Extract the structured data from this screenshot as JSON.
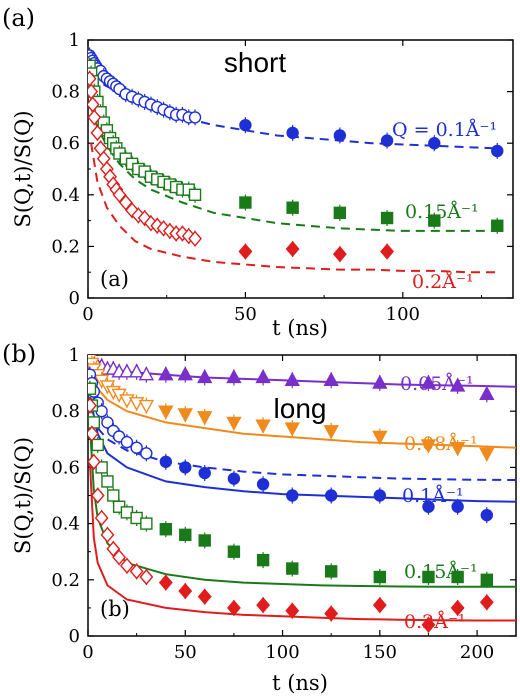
{
  "chart_data": [
    {
      "type": "scatter",
      "panel_tag": "(a)",
      "inner_tag": "(a)",
      "title": "short",
      "xlabel": "t (ns)",
      "ylabel": "S(Q,t)/S(Q)",
      "xlim": [
        0,
        135
      ],
      "ylim": [
        0,
        1
      ],
      "xticks": [
        0,
        50,
        100
      ],
      "yticks": [
        0,
        0.2,
        0.4,
        0.6,
        0.8,
        1
      ],
      "grid": false,
      "series": [
        {
          "name": "Q = 0.1Å⁻¹",
          "color": "#1f2fd6",
          "marker": "circle",
          "x": [
            0.5,
            1,
            1.5,
            2,
            2.5,
            3,
            4,
            5,
            6,
            7,
            8,
            9,
            10,
            12,
            14,
            16,
            18,
            20,
            22,
            24,
            26,
            28,
            30,
            32,
            34,
            50,
            65,
            80,
            95,
            110,
            130
          ],
          "y": [
            0.94,
            0.93,
            0.92,
            0.91,
            0.9,
            0.89,
            0.88,
            0.86,
            0.85,
            0.84,
            0.83,
            0.82,
            0.81,
            0.79,
            0.78,
            0.77,
            0.76,
            0.75,
            0.74,
            0.73,
            0.72,
            0.71,
            0.71,
            0.7,
            0.7,
            0.67,
            0.64,
            0.63,
            0.61,
            0.6,
            0.57
          ],
          "fit": {
            "style": "dashed",
            "x": [
              1,
              3,
              6,
              10,
              15,
              20,
              30,
              40,
              50,
              60,
              70,
              80,
              90,
              100,
              110,
              120,
              130
            ],
            "y": [
              0.86,
              0.84,
              0.82,
              0.8,
              0.77,
              0.74,
              0.7,
              0.67,
              0.65,
              0.63,
              0.62,
              0.61,
              0.6,
              0.595,
              0.59,
              0.585,
              0.58
            ]
          }
        },
        {
          "name": "0.15Å⁻¹",
          "color": "#1a7a1a",
          "marker": "square",
          "x": [
            0.5,
            1,
            1.5,
            2,
            3,
            4,
            5,
            6,
            7,
            8,
            9,
            10,
            12,
            14,
            16,
            18,
            20,
            22,
            24,
            26,
            28,
            30,
            32,
            34,
            50,
            65,
            80,
            95,
            110,
            130
          ],
          "y": [
            0.9,
            0.87,
            0.84,
            0.8,
            0.76,
            0.72,
            0.68,
            0.65,
            0.62,
            0.6,
            0.58,
            0.56,
            0.54,
            0.52,
            0.5,
            0.49,
            0.47,
            0.46,
            0.45,
            0.44,
            0.43,
            0.42,
            0.42,
            0.4,
            0.37,
            0.35,
            0.33,
            0.31,
            0.3,
            0.28
          ],
          "fit": {
            "style": "dashed",
            "x": [
              1,
              3,
              6,
              10,
              15,
              20,
              30,
              40,
              50,
              60,
              70,
              80,
              90,
              100,
              110,
              120,
              130
            ],
            "y": [
              0.74,
              0.66,
              0.59,
              0.52,
              0.46,
              0.42,
              0.37,
              0.33,
              0.31,
              0.29,
              0.28,
              0.27,
              0.265,
              0.26,
              0.26,
              0.26,
              0.26
            ]
          }
        },
        {
          "name": "0.2Å⁻¹",
          "color": "#e01c1c",
          "marker": "diamond",
          "x": [
            0.5,
            1,
            1.5,
            2,
            3,
            4,
            5,
            6,
            7,
            8,
            9,
            10,
            12,
            14,
            16,
            18,
            20,
            22,
            24,
            26,
            28,
            30,
            32,
            34,
            50,
            65,
            80,
            95
          ],
          "y": [
            0.85,
            0.8,
            0.75,
            0.7,
            0.64,
            0.58,
            0.54,
            0.5,
            0.47,
            0.44,
            0.42,
            0.4,
            0.37,
            0.34,
            0.32,
            0.31,
            0.29,
            0.28,
            0.27,
            0.26,
            0.25,
            0.25,
            0.24,
            0.23,
            0.18,
            0.19,
            0.17,
            0.18
          ],
          "fit": {
            "style": "dashed",
            "x": [
              1,
              3,
              6,
              10,
              15,
              20,
              30,
              40,
              50,
              60,
              70,
              80,
              90,
              100,
              110,
              120,
              130
            ],
            "y": [
              0.6,
              0.45,
              0.35,
              0.28,
              0.22,
              0.19,
              0.16,
              0.14,
              0.13,
              0.12,
              0.115,
              0.11,
              0.11,
              0.105,
              0.105,
              0.1,
              0.1
            ]
          }
        }
      ]
    },
    {
      "type": "scatter",
      "panel_tag": "(b)",
      "inner_tag": "(b)",
      "title": "long",
      "xlabel": "t (ns)",
      "ylabel": "S(Q,t)/S(Q)",
      "xlim": [
        0,
        220
      ],
      "ylim": [
        0,
        1
      ],
      "xticks": [
        0,
        50,
        100,
        150,
        200
      ],
      "yticks": [
        0,
        0.2,
        0.4,
        0.6,
        0.8,
        1
      ],
      "grid": false,
      "series": [
        {
          "name": "0.05Å⁻¹",
          "color": "#7b2fc9",
          "marker": "triangle-up",
          "x": [
            1,
            2,
            3,
            5,
            7,
            10,
            13,
            16,
            20,
            25,
            30,
            40,
            50,
            60,
            75,
            90,
            105,
            125,
            150,
            175,
            190,
            205
          ],
          "y": [
            0.99,
            0.98,
            0.97,
            0.96,
            0.96,
            0.95,
            0.95,
            0.94,
            0.94,
            0.94,
            0.93,
            0.93,
            0.93,
            0.92,
            0.92,
            0.92,
            0.91,
            0.91,
            0.9,
            0.9,
            0.89,
            0.86
          ],
          "fit": {
            "style": "solid",
            "x": [
              1,
              5,
              10,
              20,
              40,
              60,
              80,
              100,
              120,
              140,
              160,
              180,
              200,
              220
            ],
            "y": [
              0.98,
              0.96,
              0.95,
              0.94,
              0.93,
              0.92,
              0.915,
              0.91,
              0.905,
              0.9,
              0.895,
              0.892,
              0.89,
              0.887
            ]
          }
        },
        {
          "name": "0.08Å⁻¹",
          "color": "#f08a1c",
          "marker": "triangle-down",
          "x": [
            1,
            2,
            3,
            5,
            7,
            10,
            13,
            16,
            20,
            25,
            30,
            40,
            50,
            60,
            75,
            90,
            105,
            125,
            150,
            175,
            190,
            205
          ],
          "y": [
            0.99,
            0.97,
            0.95,
            0.93,
            0.91,
            0.89,
            0.87,
            0.86,
            0.84,
            0.83,
            0.82,
            0.8,
            0.79,
            0.78,
            0.76,
            0.75,
            0.74,
            0.73,
            0.71,
            0.68,
            0.67,
            0.65
          ],
          "fit": {
            "style": "solid",
            "x": [
              1,
              5,
              10,
              20,
              40,
              60,
              80,
              100,
              120,
              140,
              160,
              180,
              200,
              220
            ],
            "y": [
              0.95,
              0.88,
              0.84,
              0.8,
              0.76,
              0.74,
              0.72,
              0.71,
              0.7,
              0.69,
              0.685,
              0.68,
              0.675,
              0.67
            ]
          }
        },
        {
          "name": "0.1Å⁻¹",
          "color": "#1f2fd6",
          "marker": "circle",
          "x": [
            1,
            2,
            3,
            5,
            7,
            10,
            13,
            16,
            20,
            25,
            30,
            40,
            50,
            60,
            75,
            90,
            105,
            125,
            150,
            175,
            190,
            205
          ],
          "y": [
            0.93,
            0.9,
            0.87,
            0.83,
            0.8,
            0.76,
            0.73,
            0.71,
            0.69,
            0.67,
            0.65,
            0.62,
            0.6,
            0.58,
            0.56,
            0.54,
            0.5,
            0.5,
            0.5,
            0.46,
            0.46,
            0.43
          ],
          "fit": {
            "style": "solid",
            "x": [
              1,
              5,
              10,
              20,
              40,
              60,
              80,
              100,
              120,
              140,
              160,
              180,
              200,
              220
            ],
            "y": [
              0.85,
              0.72,
              0.65,
              0.6,
              0.55,
              0.53,
              0.515,
              0.505,
              0.5,
              0.495,
              0.49,
              0.485,
              0.48,
              0.478
            ]
          },
          "fit2": {
            "style": "dashed",
            "x": [
              5,
              10,
              20,
              40,
              60,
              80,
              100,
              120,
              140,
              160,
              180,
              200,
              220
            ],
            "y": [
              0.74,
              0.7,
              0.66,
              0.62,
              0.6,
              0.585,
              0.575,
              0.57,
              0.565,
              0.56,
              0.558,
              0.556,
              0.555
            ]
          }
        },
        {
          "name": "0.15Å⁻¹",
          "color": "#1a7a1a",
          "marker": "square",
          "x": [
            1,
            2,
            3,
            5,
            7,
            10,
            13,
            16,
            20,
            25,
            30,
            40,
            50,
            60,
            75,
            90,
            105,
            125,
            150,
            175,
            190,
            205
          ],
          "y": [
            0.88,
            0.82,
            0.76,
            0.68,
            0.6,
            0.55,
            0.5,
            0.46,
            0.44,
            0.42,
            0.4,
            0.38,
            0.36,
            0.34,
            0.3,
            0.27,
            0.24,
            0.23,
            0.21,
            0.21,
            0.21,
            0.2
          ],
          "fit": {
            "style": "solid",
            "x": [
              1,
              3,
              5,
              10,
              20,
              40,
              60,
              80,
              100,
              120,
              140,
              160,
              180,
              200,
              220
            ],
            "y": [
              0.75,
              0.52,
              0.42,
              0.33,
              0.26,
              0.22,
              0.2,
              0.19,
              0.185,
              0.18,
              0.178,
              0.176,
              0.175,
              0.175,
              0.175
            ]
          }
        },
        {
          "name": "0.2Å⁻¹",
          "color": "#e01c1c",
          "marker": "diamond",
          "x": [
            1,
            2,
            3,
            5,
            7,
            10,
            13,
            16,
            20,
            25,
            30,
            40,
            50,
            60,
            75,
            90,
            105,
            125,
            150,
            175,
            190,
            205
          ],
          "y": [
            0.82,
            0.72,
            0.62,
            0.5,
            0.42,
            0.36,
            0.31,
            0.28,
            0.25,
            0.23,
            0.21,
            0.19,
            0.16,
            0.14,
            0.1,
            0.11,
            0.09,
            0.08,
            0.11,
            0.04,
            0.1,
            0.12
          ],
          "fit": {
            "style": "solid",
            "x": [
              1,
              3,
              5,
              10,
              20,
              40,
              60,
              80,
              100,
              120,
              140,
              160,
              180,
              200,
              220
            ],
            "y": [
              0.62,
              0.35,
              0.26,
              0.18,
              0.13,
              0.1,
              0.085,
              0.075,
              0.07,
              0.065,
              0.06,
              0.058,
              0.056,
              0.055,
              0.055
            ]
          }
        }
      ]
    }
  ]
}
